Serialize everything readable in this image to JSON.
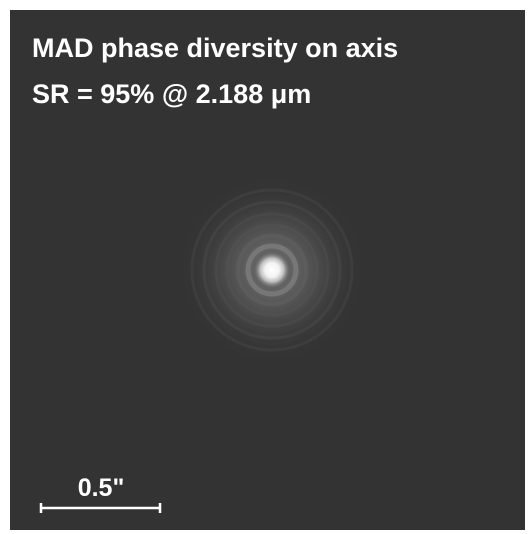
{
  "title": "MAD phase diversity on axis",
  "subtitle": "SR = 95% @ 2.188 μm",
  "scale_bar": {
    "label": "0.5\""
  }
}
